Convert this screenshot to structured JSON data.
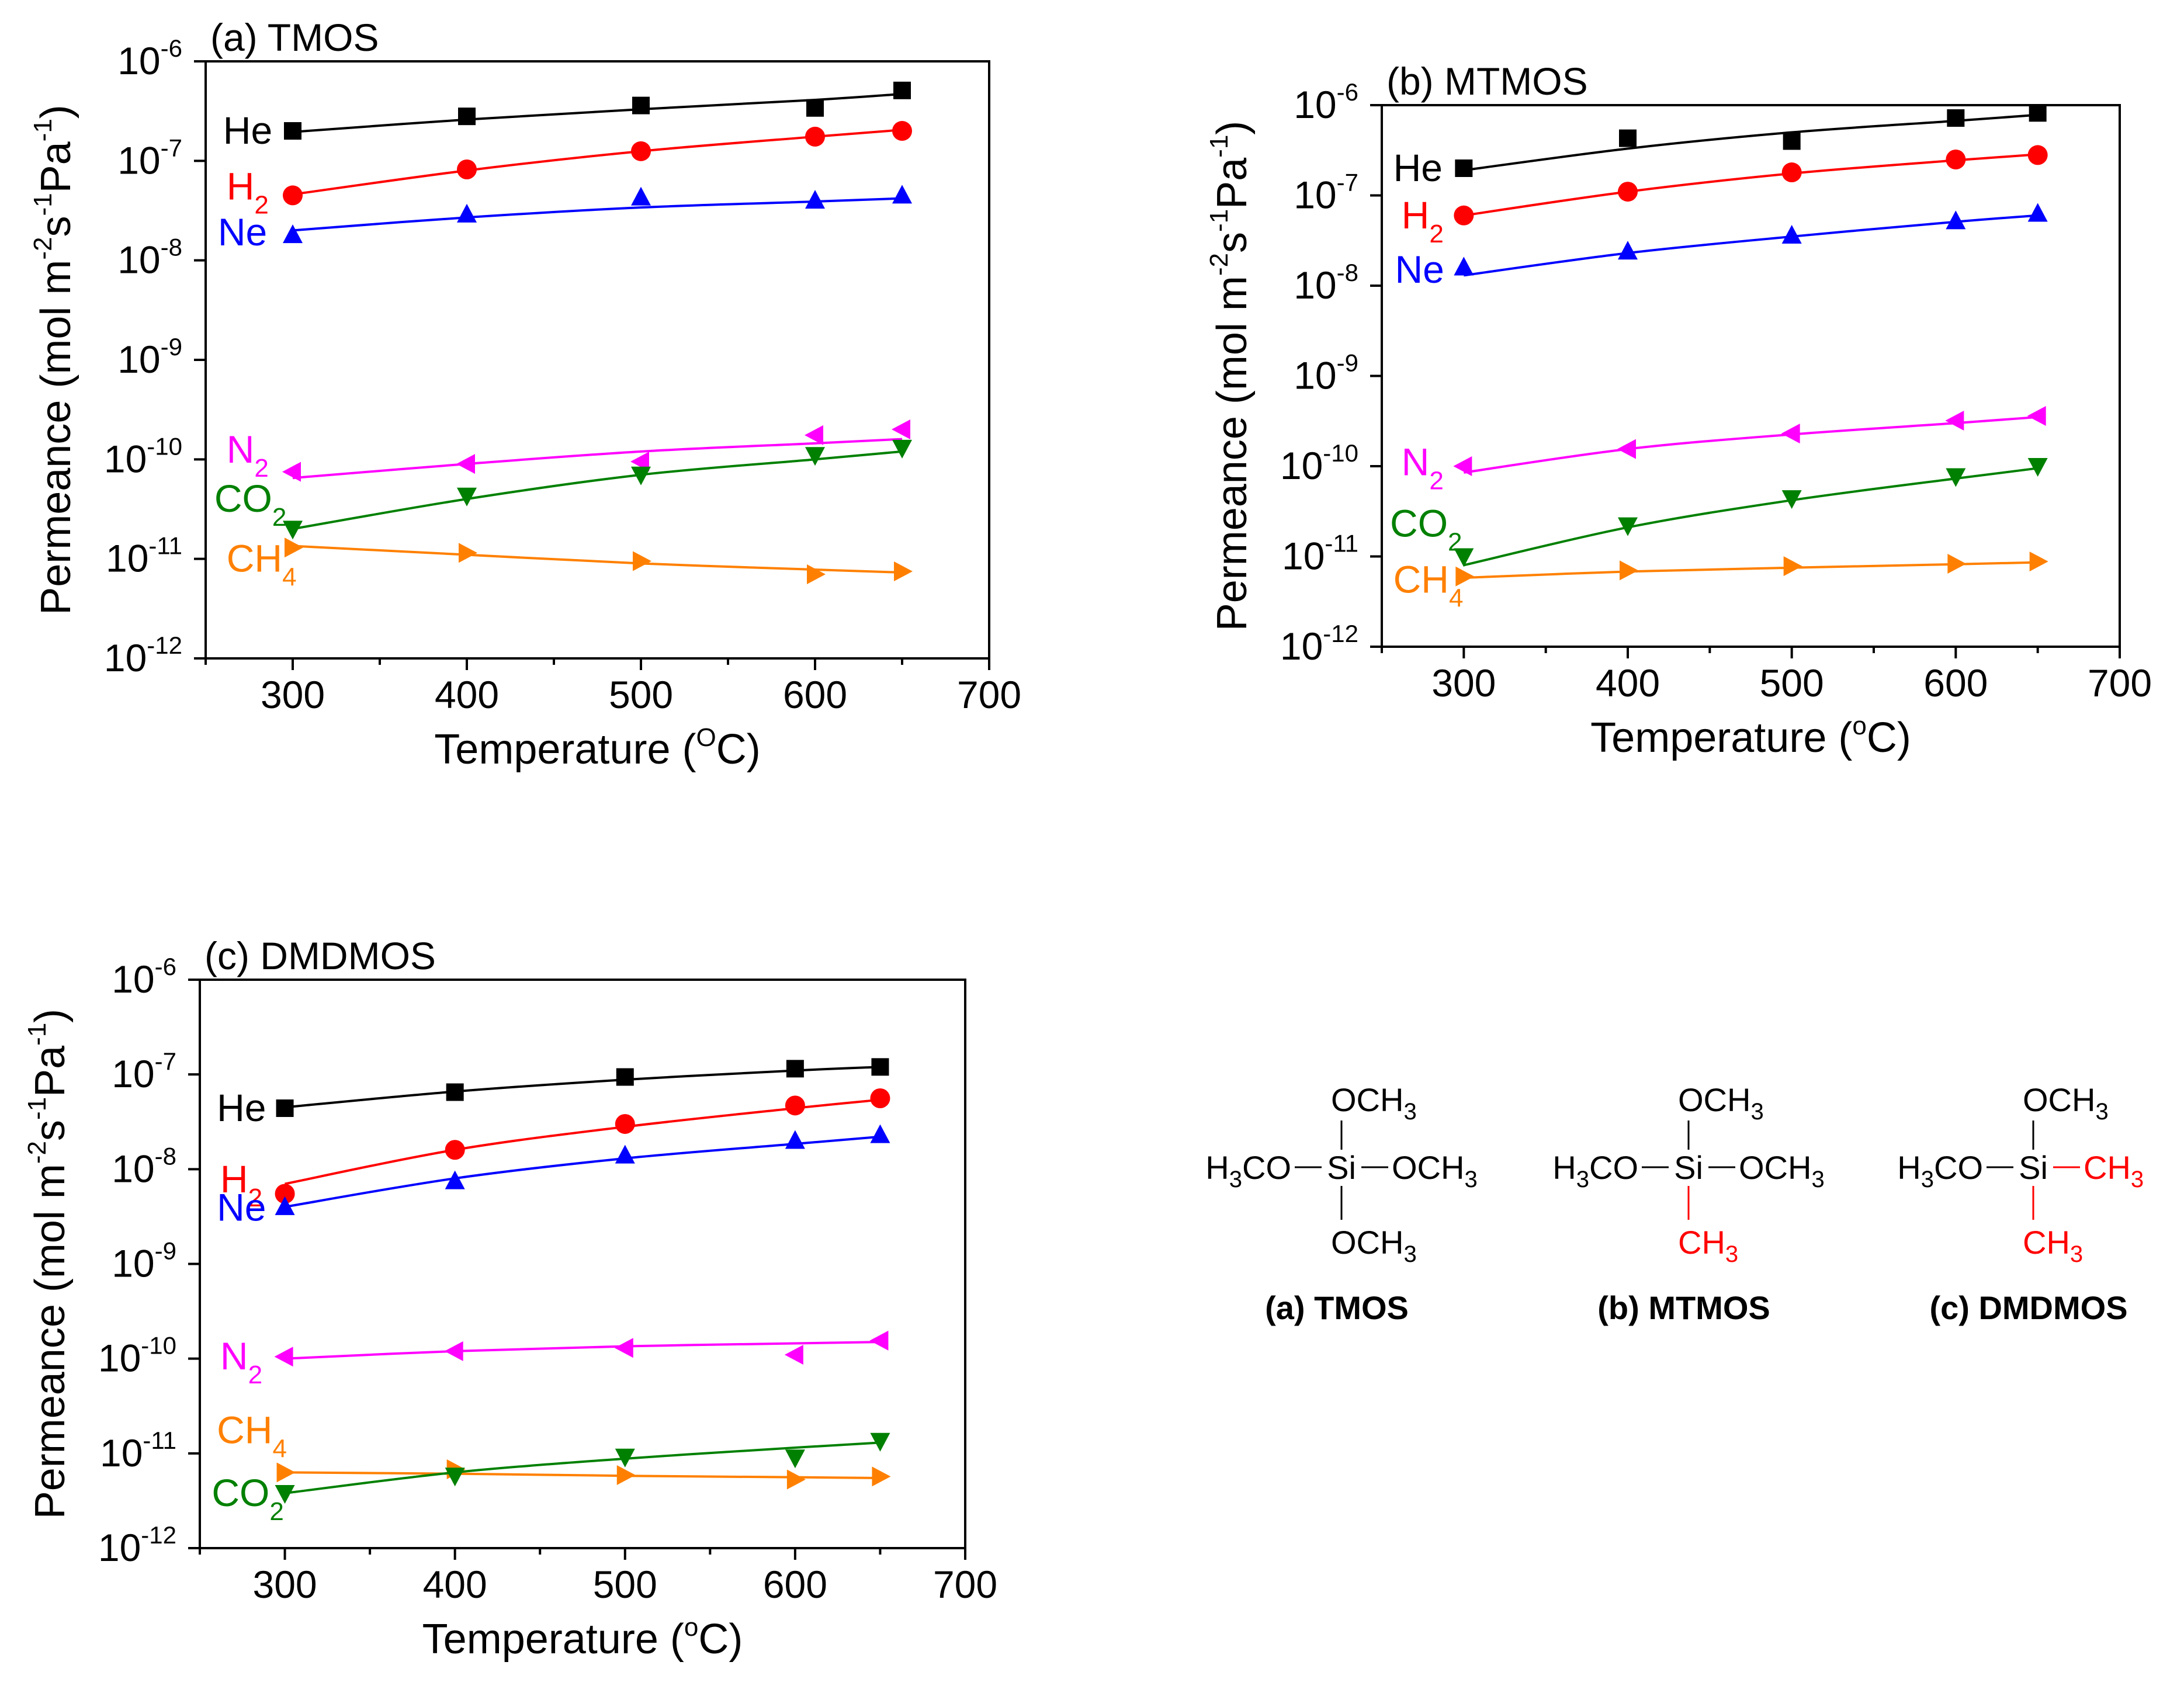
{
  "colors": {
    "He": "#000000",
    "H2": "#ff0000",
    "Ne": "#0000ff",
    "N2": "#ff00ff",
    "CO2": "#008000",
    "CH4": "#ff8000",
    "black": "#000000",
    "substituent": "#ff0000"
  },
  "chart_data": [
    {
      "type": "scatter",
      "panel": "(a) TMOS",
      "title": "(a) TMOS",
      "xlabel": "Temperature (",
      "xlabel_sup": "O",
      "xlabel_tail": "C)",
      "ylabel": "Permeance (mol m-2 s-1 Pa-1)",
      "ylabel_parts": [
        "Permeance (mol m",
        "-2",
        "s",
        "-1",
        "Pa",
        "-1",
        ")"
      ],
      "xlim": [
        250,
        700
      ],
      "ylim": [
        1e-12,
        1e-06
      ],
      "yscale": "log",
      "xticks": [
        300,
        400,
        500,
        600,
        700
      ],
      "yticks": [
        {
          "value": 1e-12,
          "base": "10",
          "exp": "-12"
        },
        {
          "value": 1e-11,
          "base": "10",
          "exp": "-11"
        },
        {
          "value": 1e-10,
          "base": "10",
          "exp": "-10"
        },
        {
          "value": 1e-09,
          "base": "10",
          "exp": "-9"
        },
        {
          "value": 1e-08,
          "base": "10",
          "exp": "-8"
        },
        {
          "value": 1e-07,
          "base": "10",
          "exp": "-7"
        },
        {
          "value": 1e-06,
          "base": "10",
          "exp": "-6"
        }
      ],
      "series": [
        {
          "name": "He",
          "label": "He",
          "sub": "",
          "marker": "square",
          "x": [
            300,
            400,
            500,
            600,
            650
          ],
          "y": [
            2e-07,
            2.8e-07,
            3.6e-07,
            3.4e-07,
            5.1e-07
          ],
          "fit": [
            1.95e-07,
            2.6e-07,
            3.3e-07,
            4.1e-07,
            4.7e-07
          ]
        },
        {
          "name": "H2",
          "label": "H",
          "sub": "2",
          "marker": "circle",
          "x": [
            300,
            400,
            500,
            600,
            650
          ],
          "y": [
            4.5e-08,
            8.2e-08,
            1.25e-07,
            1.75e-07,
            2e-07
          ],
          "fit": [
            4.6e-08,
            8e-08,
            1.25e-07,
            1.75e-07,
            2.05e-07
          ]
        },
        {
          "name": "Ne",
          "label": "Ne",
          "sub": "",
          "marker": "triangle-up",
          "x": [
            300,
            400,
            500,
            600,
            650
          ],
          "y": [
            1.8e-08,
            2.9e-08,
            4.3e-08,
            4e-08,
            4.5e-08
          ],
          "fit": [
            2e-08,
            2.7e-08,
            3.4e-08,
            3.9e-08,
            4.2e-08
          ]
        },
        {
          "name": "N2",
          "label": "N",
          "sub": "2",
          "marker": "triangle-left",
          "x": [
            300,
            400,
            500,
            600,
            650
          ],
          "y": [
            7.5e-11,
            9e-11,
            9.5e-11,
            1.75e-10,
            2e-10
          ],
          "fit": [
            6.5e-11,
            9e-11,
            1.2e-10,
            1.45e-10,
            1.6e-10
          ]
        },
        {
          "name": "CO2",
          "label": "CO",
          "sub": "2",
          "marker": "triangle-down",
          "x": [
            300,
            400,
            500,
            600,
            650
          ],
          "y": [
            2e-11,
            4.3e-11,
            7e-11,
            1.1e-10,
            1.3e-10
          ],
          "fit": [
            2e-11,
            4e-11,
            7e-11,
            1e-10,
            1.2e-10
          ]
        },
        {
          "name": "CH4",
          "label": "CH",
          "sub": "4",
          "marker": "triangle-right",
          "x": [
            300,
            400,
            500,
            600,
            650
          ],
          "y": [
            1.3e-11,
            1.15e-11,
            9.5e-12,
            7e-12,
            7.5e-12
          ],
          "fit": [
            1.35e-11,
            1.1e-11,
            9e-12,
            7.8e-12,
            7.3e-12
          ]
        }
      ]
    },
    {
      "type": "scatter",
      "panel": "(b) MTMOS",
      "title": "(b) MTMOS",
      "xlabel": "Temperature (",
      "xlabel_sup": "o",
      "xlabel_tail": "C)",
      "ylabel": "Permeance (mol m-2 s-1 Pa-1)",
      "ylabel_parts": [
        "Permeance (mol m",
        "-2",
        "s",
        "-1",
        "Pa",
        "-1",
        ")"
      ],
      "xlim": [
        250,
        700
      ],
      "ylim": [
        1e-12,
        1e-06
      ],
      "yscale": "log",
      "xticks": [
        300,
        400,
        500,
        600,
        700
      ],
      "yticks": [
        {
          "value": 1e-12,
          "base": "10",
          "exp": "-12"
        },
        {
          "value": 1e-11,
          "base": "10",
          "exp": "-11"
        },
        {
          "value": 1e-10,
          "base": "10",
          "exp": "-10"
        },
        {
          "value": 1e-09,
          "base": "10",
          "exp": "-9"
        },
        {
          "value": 1e-08,
          "base": "10",
          "exp": "-8"
        },
        {
          "value": 1e-07,
          "base": "10",
          "exp": "-7"
        },
        {
          "value": 1e-06,
          "base": "10",
          "exp": "-6"
        }
      ],
      "series": [
        {
          "name": "He",
          "label": "He",
          "sub": "",
          "marker": "square",
          "x": [
            300,
            400,
            500,
            600,
            650
          ],
          "y": [
            2e-07,
            4.3e-07,
            4e-07,
            7.2e-07,
            8.2e-07
          ],
          "fit": [
            1.9e-07,
            3.3e-07,
            5e-07,
            6.7e-07,
            7.8e-07
          ]
        },
        {
          "name": "H2",
          "label": "H",
          "sub": "2",
          "marker": "circle",
          "x": [
            300,
            400,
            500,
            600,
            650
          ],
          "y": [
            6e-08,
            1.1e-07,
            1.8e-07,
            2.5e-07,
            2.8e-07
          ],
          "fit": [
            6e-08,
            1.1e-07,
            1.75e-07,
            2.45e-07,
            2.85e-07
          ]
        },
        {
          "name": "Ne",
          "label": "Ne",
          "sub": "",
          "marker": "triangle-up",
          "x": [
            300,
            400,
            500,
            600,
            650
          ],
          "y": [
            1.6e-08,
            2.4e-08,
            3.6e-08,
            5.2e-08,
            6.3e-08
          ],
          "fit": [
            1.3e-08,
            2.3e-08,
            3.5e-08,
            5.1e-08,
            6e-08
          ]
        },
        {
          "name": "N2",
          "label": "N",
          "sub": "2",
          "marker": "triangle-left",
          "x": [
            300,
            400,
            500,
            600,
            650
          ],
          "y": [
            1e-10,
            1.55e-10,
            2.3e-10,
            3.2e-10,
            3.6e-10
          ],
          "fit": [
            8.5e-11,
            1.55e-10,
            2.25e-10,
            3e-10,
            3.5e-10
          ]
        },
        {
          "name": "CO2",
          "label": "CO",
          "sub": "2",
          "marker": "triangle-down",
          "x": [
            300,
            400,
            500,
            600,
            650
          ],
          "y": [
            1e-11,
            2.2e-11,
            4.4e-11,
            7.7e-11,
            1e-10
          ],
          "fit": [
            8e-12,
            2.1e-11,
            4.2e-11,
            7.3e-11,
            9.5e-11
          ]
        },
        {
          "name": "CH4",
          "label": "CH",
          "sub": "4",
          "marker": "triangle-right",
          "x": [
            300,
            400,
            500,
            600,
            650
          ],
          "y": [
            6e-12,
            7e-12,
            7.8e-12,
            8.3e-12,
            8.8e-12
          ],
          "fit": [
            5.8e-12,
            6.8e-12,
            7.5e-12,
            8.2e-12,
            8.6e-12
          ]
        }
      ]
    },
    {
      "type": "scatter",
      "panel": "(c) DMDMOS",
      "title": "(c) DMDMOS",
      "xlabel": "Temperature (",
      "xlabel_sup": "o",
      "xlabel_tail": "C)",
      "ylabel": "Permeance (mol m-2 s-1 Pa-1)",
      "ylabel_parts": [
        "Permeance (mol m",
        "-2",
        "s",
        "-1",
        "Pa",
        "-1",
        ")"
      ],
      "xlim": [
        250,
        700
      ],
      "ylim": [
        1e-12,
        1e-06
      ],
      "yscale": "log",
      "xticks": [
        300,
        400,
        500,
        600,
        700
      ],
      "yticks": [
        {
          "value": 1e-12,
          "base": "10",
          "exp": "-12"
        },
        {
          "value": 1e-11,
          "base": "10",
          "exp": "-11"
        },
        {
          "value": 1e-10,
          "base": "10",
          "exp": "-10"
        },
        {
          "value": 1e-09,
          "base": "10",
          "exp": "-9"
        },
        {
          "value": 1e-08,
          "base": "10",
          "exp": "-8"
        },
        {
          "value": 1e-07,
          "base": "10",
          "exp": "-7"
        },
        {
          "value": 1e-06,
          "base": "10",
          "exp": "-6"
        }
      ],
      "series": [
        {
          "name": "He",
          "label": "He",
          "sub": "",
          "marker": "square",
          "x": [
            300,
            400,
            500,
            600,
            650
          ],
          "y": [
            4.4e-08,
            6.5e-08,
            9.4e-08,
            1.15e-07,
            1.2e-07
          ],
          "fit": [
            4.5e-08,
            6.6e-08,
            8.8e-08,
            1.1e-07,
            1.2e-07
          ]
        },
        {
          "name": "H2",
          "label": "H",
          "sub": "2",
          "marker": "circle",
          "x": [
            300,
            400,
            500,
            600,
            650
          ],
          "y": [
            5.5e-09,
            1.6e-08,
            3e-08,
            4.7e-08,
            5.6e-08
          ],
          "fit": [
            7e-09,
            1.6e-08,
            2.8e-08,
            4.4e-08,
            5.4e-08
          ]
        },
        {
          "name": "Ne",
          "label": "Ne",
          "sub": "",
          "marker": "triangle-up",
          "x": [
            300,
            400,
            500,
            600,
            650
          ],
          "y": [
            4e-09,
            7.5e-09,
            1.4e-08,
            2e-08,
            2.3e-08
          ],
          "fit": [
            4e-09,
            8e-09,
            1.3e-08,
            1.85e-08,
            2.2e-08
          ]
        },
        {
          "name": "N2",
          "label": "N",
          "sub": "2",
          "marker": "triangle-left",
          "x": [
            300,
            400,
            500,
            600,
            650
          ],
          "y": [
            1.05e-10,
            1.2e-10,
            1.3e-10,
            1.1e-10,
            1.55e-10
          ],
          "fit": [
            1e-10,
            1.2e-10,
            1.35e-10,
            1.45e-10,
            1.5e-10
          ]
        },
        {
          "name": "CH4",
          "label": "CH",
          "sub": "4",
          "marker": "triangle-right",
          "x": [
            300,
            400,
            500,
            600,
            650
          ],
          "y": [
            6.3e-12,
            6.8e-12,
            5.9e-12,
            5.3e-12,
            5.7e-12
          ],
          "fit": [
            6.3e-12,
            6.1e-12,
            5.8e-12,
            5.6e-12,
            5.5e-12
          ]
        },
        {
          "name": "CO2",
          "label": "CO",
          "sub": "2",
          "marker": "triangle-down",
          "x": [
            300,
            400,
            500,
            600,
            650
          ],
          "y": [
            3.8e-12,
            5.8e-12,
            9.2e-12,
            9e-12,
            1.35e-11
          ],
          "fit": [
            3.8e-12,
            6.3e-12,
            8.8e-12,
            1.15e-11,
            1.3e-11
          ]
        }
      ]
    }
  ],
  "structures": [
    {
      "id": "tmos",
      "caption": "(a) TMOS",
      "top": {
        "text": "OCH",
        "sub": "3",
        "red": false
      },
      "left": {
        "text": "H",
        "sub": "3",
        "tail": "CO",
        "red": false
      },
      "center": "Si",
      "right": {
        "text": "OCH",
        "sub": "3",
        "red": false
      },
      "bottom": {
        "text": "OCH",
        "sub": "3",
        "red": false
      }
    },
    {
      "id": "mtmos",
      "caption": "(b) MTMOS",
      "top": {
        "text": "OCH",
        "sub": "3",
        "red": false
      },
      "left": {
        "text": "H",
        "sub": "3",
        "tail": "CO",
        "red": false
      },
      "center": "Si",
      "right": {
        "text": "OCH",
        "sub": "3",
        "red": false
      },
      "bottom": {
        "text": "CH",
        "sub": "3",
        "red": true
      }
    },
    {
      "id": "dmdmos",
      "caption": "(c) DMDMOS",
      "top": {
        "text": "OCH",
        "sub": "3",
        "red": false
      },
      "left": {
        "text": "H",
        "sub": "3",
        "tail": "CO",
        "red": false
      },
      "center": "Si",
      "right": {
        "text": "CH",
        "sub": "3",
        "red": true
      },
      "bottom": {
        "text": "CH",
        "sub": "3",
        "red": true
      }
    }
  ]
}
